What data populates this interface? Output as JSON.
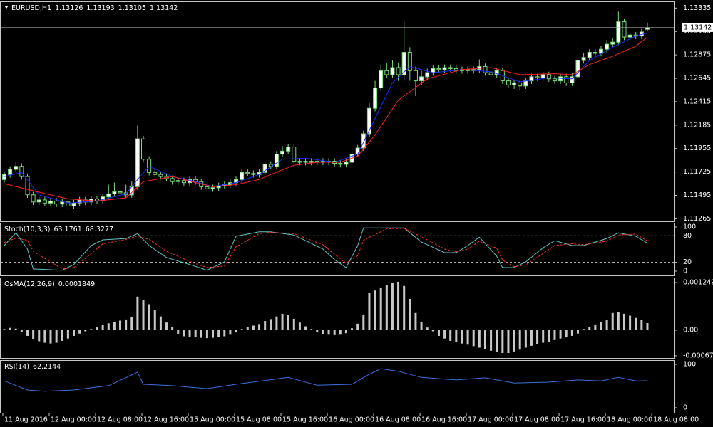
{
  "chart_data": [
    {
      "type": "candlestick",
      "title": "EURUSD,H1",
      "open": [
        1.1165,
        1.117,
        1.1175,
        1.1178,
        1.1168,
        1.115,
        1.1143,
        1.1145,
        1.1142,
        1.1144,
        1.1141,
        1.1143,
        1.1139,
        1.1142,
        1.1145,
        1.1143,
        1.1146,
        1.1144,
        1.1148,
        1.1151,
        1.1153,
        1.1152,
        1.115,
        1.1158,
        1.1205,
        1.1185,
        1.1172,
        1.117,
        1.1168,
        1.1166,
        1.1163,
        1.1164,
        1.1162,
        1.1165,
        1.1163,
        1.1158,
        1.1156,
        1.1157,
        1.1159,
        1.116,
        1.1162,
        1.1165,
        1.1172,
        1.1171,
        1.117,
        1.1172,
        1.118,
        1.1178,
        1.119,
        1.1193,
        1.1197,
        1.1183,
        1.1182,
        1.1183,
        1.1182,
        1.1183,
        1.1182,
        1.1183,
        1.1181,
        1.118,
        1.1182,
        1.119,
        1.1196,
        1.121,
        1.1235,
        1.1255,
        1.1272,
        1.1268,
        1.1275,
        1.1268,
        1.129,
        1.1272,
        1.1262,
        1.1266,
        1.127,
        1.1274,
        1.1273,
        1.1275,
        1.1274,
        1.1272,
        1.1273,
        1.1272,
        1.1273,
        1.1276,
        1.127,
        1.1268,
        1.1272,
        1.1262,
        1.1258,
        1.126,
        1.1257,
        1.1262,
        1.1266,
        1.1265,
        1.1268,
        1.1264,
        1.1262,
        1.1266,
        1.126,
        1.1266,
        1.1282,
        1.1285,
        1.129,
        1.1289,
        1.1293,
        1.1298,
        1.13,
        1.132,
        1.1305,
        1.1307,
        1.1306,
        1.13126
      ],
      "high": [
        1.1173,
        1.1178,
        1.1182,
        1.1181,
        1.1171,
        1.1153,
        1.1148,
        1.1148,
        1.1147,
        1.1147,
        1.1146,
        1.1146,
        1.1145,
        1.1148,
        1.1148,
        1.1149,
        1.1149,
        1.1151,
        1.116,
        1.1162,
        1.1158,
        1.116,
        1.1163,
        1.1218,
        1.1208,
        1.1188,
        1.1175,
        1.1173,
        1.1171,
        1.1169,
        1.1167,
        1.1167,
        1.1168,
        1.1168,
        1.1166,
        1.1161,
        1.116,
        1.1162,
        1.1163,
        1.1165,
        1.1168,
        1.1175,
        1.1175,
        1.1174,
        1.1175,
        1.1183,
        1.1183,
        1.1193,
        1.1198,
        1.12,
        1.12,
        1.1186,
        1.1186,
        1.1186,
        1.1186,
        1.1186,
        1.1186,
        1.1186,
        1.1184,
        1.1185,
        1.1193,
        1.1199,
        1.1213,
        1.124,
        1.1262,
        1.1278,
        1.128,
        1.1282,
        1.128,
        1.132,
        1.1295,
        1.1276,
        1.1272,
        1.1274,
        1.1277,
        1.1277,
        1.1278,
        1.1278,
        1.1277,
        1.1276,
        1.1276,
        1.1276,
        1.1283,
        1.1279,
        1.1273,
        1.1275,
        1.1275,
        1.1265,
        1.1263,
        1.1263,
        1.1265,
        1.1269,
        1.1269,
        1.1271,
        1.1271,
        1.1267,
        1.1269,
        1.1269,
        1.127,
        1.1305,
        1.1289,
        1.1293,
        1.1293,
        1.1296,
        1.1302,
        1.1304,
        1.133,
        1.1323,
        1.131,
        1.131,
        1.1313,
        1.13193
      ],
      "low": [
        1.1162,
        1.1167,
        1.1172,
        1.1165,
        1.1147,
        1.114,
        1.114,
        1.1139,
        1.1139,
        1.1138,
        1.1138,
        1.1136,
        1.1136,
        1.1139,
        1.114,
        1.114,
        1.1141,
        1.1141,
        1.1145,
        1.1148,
        1.1149,
        1.1147,
        1.1147,
        1.1155,
        1.1182,
        1.1169,
        1.1167,
        1.1165,
        1.1163,
        1.116,
        1.116,
        1.1159,
        1.1159,
        1.116,
        1.1155,
        1.1153,
        1.1153,
        1.1154,
        1.1156,
        1.1157,
        1.1159,
        1.1162,
        1.1168,
        1.1167,
        1.1167,
        1.1169,
        1.1175,
        1.1175,
        1.1187,
        1.119,
        1.118,
        1.1179,
        1.1179,
        1.1179,
        1.1179,
        1.1179,
        1.1179,
        1.1178,
        1.1177,
        1.1177,
        1.1179,
        1.1187,
        1.1193,
        1.1207,
        1.1232,
        1.1252,
        1.1265,
        1.1265,
        1.1262,
        1.1262,
        1.1262,
        1.1247,
        1.1258,
        1.1263,
        1.1267,
        1.127,
        1.127,
        1.1271,
        1.1269,
        1.1269,
        1.1269,
        1.1269,
        1.127,
        1.1267,
        1.1265,
        1.1265,
        1.1259,
        1.1255,
        1.1254,
        1.1253,
        1.1254,
        1.1259,
        1.1262,
        1.1262,
        1.1261,
        1.1259,
        1.1259,
        1.1257,
        1.1257,
        1.1248,
        1.1279,
        1.1282,
        1.1286,
        1.1286,
        1.129,
        1.1295,
        1.1297,
        1.1302,
        1.1302,
        1.1303,
        1.1303,
        1.13105
      ],
      "close": [
        1.117,
        1.1175,
        1.1178,
        1.1168,
        1.115,
        1.1143,
        1.1145,
        1.1142,
        1.1144,
        1.1141,
        1.1143,
        1.1139,
        1.1142,
        1.1145,
        1.1143,
        1.1146,
        1.1144,
        1.1148,
        1.1151,
        1.1153,
        1.1152,
        1.115,
        1.1158,
        1.1205,
        1.1185,
        1.1172,
        1.117,
        1.1168,
        1.1166,
        1.1163,
        1.1164,
        1.1162,
        1.1165,
        1.1163,
        1.1158,
        1.1156,
        1.1157,
        1.1159,
        1.116,
        1.1162,
        1.1165,
        1.1172,
        1.1171,
        1.117,
        1.1172,
        1.118,
        1.1178,
        1.119,
        1.1193,
        1.1197,
        1.1183,
        1.1182,
        1.1183,
        1.1182,
        1.1183,
        1.1182,
        1.1183,
        1.1181,
        1.118,
        1.1182,
        1.119,
        1.1196,
        1.121,
        1.1235,
        1.1255,
        1.1272,
        1.1268,
        1.1275,
        1.1268,
        1.129,
        1.1272,
        1.1262,
        1.1266,
        1.127,
        1.1274,
        1.1273,
        1.1275,
        1.1274,
        1.1272,
        1.1273,
        1.1272,
        1.1273,
        1.1276,
        1.127,
        1.1268,
        1.1272,
        1.1262,
        1.1258,
        1.126,
        1.1257,
        1.1262,
        1.1266,
        1.1265,
        1.1268,
        1.1264,
        1.1262,
        1.1266,
        1.126,
        1.1266,
        1.1282,
        1.1285,
        1.129,
        1.1289,
        1.1293,
        1.1298,
        1.13,
        1.132,
        1.1305,
        1.1307,
        1.1306,
        1.131,
        1.13142
      ],
      "bull_color": "#ffffff",
      "bear_color": "#000000",
      "wick_color": "#7ddc7d",
      "lines": [
        {
          "color": "#1f2bff",
          "x": [
            0,
            3,
            6,
            11,
            16,
            21,
            23,
            25,
            29,
            33,
            36,
            40,
            44,
            48,
            52,
            57,
            61,
            64,
            67,
            70,
            74,
            79,
            84,
            89,
            94,
            98,
            101,
            105,
            109,
            111
          ],
          "values": [
            1.1168,
            1.1172,
            1.115,
            1.1142,
            1.1144,
            1.1151,
            1.1165,
            1.1178,
            1.1168,
            1.1163,
            1.1158,
            1.1162,
            1.117,
            1.1185,
            1.1186,
            1.1182,
            1.119,
            1.1225,
            1.126,
            1.1276,
            1.127,
            1.1273,
            1.1271,
            1.1261,
            1.1265,
            1.1264,
            1.1282,
            1.1295,
            1.1306,
            1.1309
          ]
        },
        {
          "color": "#ff2020",
          "x": [
            0,
            5,
            11,
            16,
            21,
            24,
            29,
            33,
            36,
            40,
            44,
            46,
            50,
            54,
            58,
            61,
            64,
            68,
            73,
            79,
            84,
            89,
            95,
            98,
            101,
            105,
            109,
            111
          ],
          "values": [
            1.1161,
            1.1154,
            1.1146,
            1.1144,
            1.1147,
            1.1163,
            1.1168,
            1.1162,
            1.1158,
            1.116,
            1.1165,
            1.117,
            1.1179,
            1.1182,
            1.1182,
            1.1188,
            1.1209,
            1.1243,
            1.1264,
            1.1273,
            1.1275,
            1.1268,
            1.1269,
            1.1268,
            1.1278,
            1.1286,
            1.1296,
            1.1305
          ]
        }
      ],
      "ylim": [
        1.1124,
        1.134
      ],
      "yticks": [
        1.13335,
        1.13105,
        1.12875,
        1.12645,
        1.12415,
        1.12185,
        1.11955,
        1.11725,
        1.11495,
        1.11265
      ],
      "xticks": [
        {
          "value": 0,
          "label": "11 Aug 2016"
        },
        {
          "value": 8,
          "label": "12 Aug 00:00"
        },
        {
          "value": 16,
          "label": "12 Aug 08:00"
        },
        {
          "value": 24,
          "label": "12 Aug 16:00"
        },
        {
          "value": 32,
          "label": "15 Aug 00:00"
        },
        {
          "value": 40,
          "label": "15 Aug 08:00"
        },
        {
          "value": 48,
          "label": "15 Aug 16:00"
        },
        {
          "value": 56,
          "label": "16 Aug 00:00"
        },
        {
          "value": 64,
          "label": "16 Aug 08:00"
        },
        {
          "value": 72,
          "label": "16 Aug 16:00"
        },
        {
          "value": 80,
          "label": "17 Aug 00:00"
        },
        {
          "value": 88,
          "label": "17 Aug 08:00"
        },
        {
          "value": 96,
          "label": "17 Aug 16:00"
        },
        {
          "value": 104,
          "label": "18 Aug 00:00"
        },
        {
          "value": 112,
          "label": "18 Aug 08:00"
        }
      ]
    },
    {
      "type": "line",
      "title": "Stoch(10,3,3)",
      "series": [
        {
          "color": "#5fc4c4",
          "x": [
            0,
            2,
            4,
            5,
            10,
            12,
            15,
            17,
            21,
            23,
            25,
            28,
            32,
            35,
            38,
            40,
            44,
            46,
            50,
            55,
            57,
            59,
            61,
            62,
            66,
            69,
            72,
            76,
            78,
            80,
            82,
            85,
            86,
            88,
            90,
            93,
            95,
            98,
            100,
            104,
            106,
            109,
            111
          ],
          "values": [
            58,
            87,
            50,
            5,
            2,
            15,
            58,
            71,
            74,
            85,
            58,
            31,
            15,
            2,
            21,
            79,
            89,
            89,
            82,
            50,
            26,
            8,
            58,
            98,
            98,
            98,
            66,
            42,
            42,
            58,
            77,
            34,
            8,
            8,
            21,
            53,
            69,
            58,
            58,
            74,
            87,
            79,
            63.1761
          ]
        },
        {
          "color": "#ff3030",
          "dashed": true,
          "x": [
            0,
            2,
            4,
            5,
            10,
            12,
            15,
            17,
            21,
            23,
            25,
            28,
            32,
            35,
            38,
            40,
            44,
            46,
            50,
            55,
            57,
            59,
            61,
            62,
            66,
            69,
            72,
            76,
            78,
            80,
            82,
            85,
            86,
            88,
            90,
            93,
            95,
            98,
            100,
            104,
            106,
            109,
            111
          ],
          "values": [
            65,
            75,
            70,
            45,
            5,
            8,
            40,
            62,
            72,
            80,
            72,
            45,
            22,
            8,
            12,
            55,
            85,
            88,
            85,
            60,
            38,
            18,
            35,
            70,
            96,
            97,
            78,
            50,
            44,
            50,
            68,
            52,
            25,
            10,
            14,
            40,
            58,
            62,
            60,
            68,
            82,
            84,
            68.3277
          ]
        }
      ],
      "levels": [
        80,
        20
      ],
      "ylim": [
        -9.7,
        109.7
      ],
      "yticks": [
        100,
        80,
        20,
        0
      ]
    },
    {
      "type": "bar",
      "title": "OsMA(12,26,9)",
      "color": "#c8c8c8",
      "values": [
        3e-05,
        6e-05,
        4e-05,
        -5e-05,
        -0.00015,
        -0.00023,
        -0.00029,
        -0.00033,
        -0.00035,
        -0.00033,
        -0.00028,
        -0.00022,
        -0.00015,
        -9e-05,
        -3e-05,
        3e-05,
        8e-05,
        0.00013,
        0.00018,
        0.00022,
        0.00025,
        0.00028,
        0.00035,
        0.00088,
        0.0008,
        0.00068,
        0.00052,
        0.00036,
        0.0002,
        8e-05,
        -0.0001,
        -0.00016,
        -0.00018,
        -0.00019,
        -0.0002,
        -0.00021,
        -0.0002,
        -0.00019,
        -0.00016,
        -0.00012,
        -6e-05,
        3e-05,
        8e-05,
        0.00012,
        0.00016,
        0.00024,
        0.00029,
        0.00036,
        0.00043,
        0.0004,
        0.0003,
        0.0002,
        0.0001,
        3e-05,
        -6e-05,
        -0.0001,
        -0.00012,
        -0.00013,
        -0.00012,
        -8e-05,
        5e-05,
        0.00017,
        0.00039,
        0.00097,
        0.00104,
        0.00112,
        0.00119,
        0.00123,
        0.00127,
        0.00116,
        0.00082,
        0.00045,
        0.00022,
        7e-05,
        -3e-05,
        -0.00015,
        -0.00022,
        -0.00028,
        -0.00032,
        -0.00035,
        -0.00038,
        -0.00042,
        -0.00046,
        -0.0005,
        -0.00054,
        -0.00058,
        -0.0006,
        -0.0006,
        -0.00056,
        -0.00051,
        -0.00046,
        -0.00041,
        -0.00037,
        -0.00033,
        -0.0003,
        -0.00026,
        -0.00022,
        -0.00019,
        -0.00015,
        -9e-05,
        3e-05,
        8e-05,
        0.00015,
        0.00022,
        0.00027,
        0.00045,
        0.00048,
        0.00043,
        0.00038,
        0.00032,
        0.00026,
        0.0001849
      ],
      "ylim": [
        -0.00073,
        0.00138
      ],
      "yticks": [
        0.001249,
        {
          "value": 0,
          "label": "0.00"
        },
        -0.000673
      ]
    },
    {
      "type": "line",
      "title": "RSI(14)",
      "series": [
        {
          "color": "#3b6fe0",
          "x": [
            0,
            4,
            7,
            12,
            18,
            19,
            23,
            24,
            29,
            35,
            40,
            44,
            49,
            54,
            60,
            63,
            65,
            68,
            72,
            78,
            83,
            88,
            94,
            99,
            103,
            106,
            109,
            111
          ],
          "values": [
            62,
            41,
            38,
            41,
            51,
            57,
            82,
            54,
            51,
            44,
            54,
            61,
            70,
            52,
            54,
            77,
            90,
            84,
            70,
            64,
            69,
            57,
            59,
            64,
            62,
            70,
            62,
            62.2144
          ]
        }
      ],
      "ylim": [
        -11.5,
        109.8
      ],
      "yticks": [
        100,
        0
      ]
    }
  ]
}
